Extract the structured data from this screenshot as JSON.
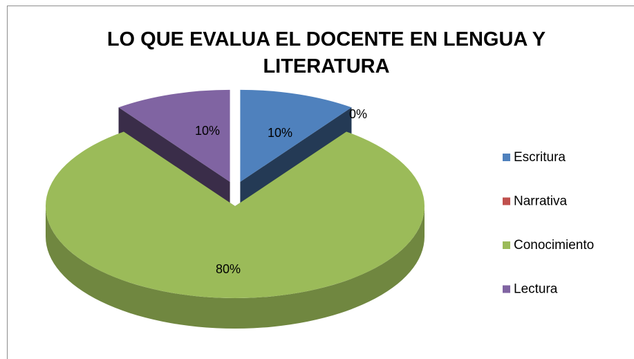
{
  "chart_data": {
    "type": "pie",
    "title": "LO QUE EVALUA EL DOCENTE EN LENGUA Y LITERATURA",
    "categories": [
      "Escritura",
      "Narrativa",
      "Conocimiento",
      "Lectura"
    ],
    "values": [
      10,
      0,
      80,
      10
    ],
    "value_labels": [
      "10%",
      "0%",
      "80%",
      "10%"
    ],
    "colors": [
      "#4f81bd",
      "#c0504d",
      "#9bbb59",
      "#8064a2"
    ],
    "legend": "right"
  }
}
